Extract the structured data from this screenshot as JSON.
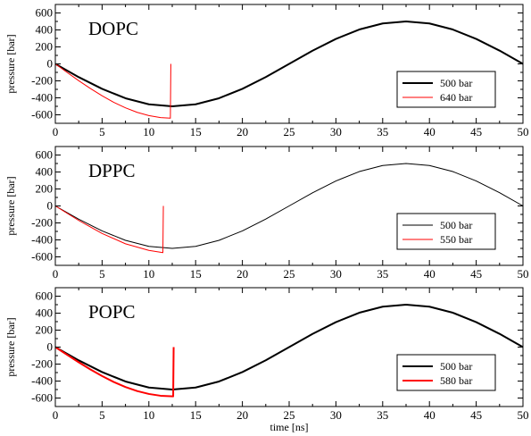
{
  "chart_data": [
    {
      "type": "line",
      "title": "DOPC",
      "xlabel": "",
      "ylabel": "pressure [bar]",
      "xlim": [
        0,
        50
      ],
      "ylim": [
        -700,
        700
      ],
      "xticks": [
        0,
        5,
        10,
        15,
        20,
        25,
        30,
        35,
        40,
        45,
        50
      ],
      "yticks": [
        -600,
        -400,
        -200,
        0,
        200,
        400,
        600
      ],
      "grid": false,
      "legend_position": "bottom-right",
      "series": [
        {
          "name": "500 bar",
          "color": "#000000",
          "line_width": 2,
          "x": [
            0,
            2.5,
            5,
            7.5,
            10,
            12.5,
            15,
            17.5,
            20,
            22.5,
            25,
            27.5,
            30,
            32.5,
            35,
            37.5,
            40,
            42.5,
            45,
            47.5,
            50
          ],
          "y": [
            0,
            -156,
            -294,
            -405,
            -476,
            -500,
            -476,
            -405,
            -294,
            -155,
            0,
            155,
            294,
            405,
            476,
            500,
            476,
            405,
            294,
            156,
            0
          ]
        },
        {
          "name": "640 bar",
          "color": "#ff0000",
          "line_width": 1,
          "x": [
            0,
            1.25,
            2.5,
            3.75,
            5,
            6.25,
            7.5,
            8.75,
            10,
            11.25,
            12.3,
            12.35
          ],
          "y": [
            0,
            -100,
            -198,
            -290,
            -376,
            -453,
            -518,
            -571,
            -609,
            -633,
            -640,
            0
          ]
        }
      ]
    },
    {
      "type": "line",
      "title": "DPPC",
      "xlabel": "",
      "ylabel": "pressure [bar]",
      "xlim": [
        0,
        50
      ],
      "ylim": [
        -700,
        700
      ],
      "xticks": [
        0,
        5,
        10,
        15,
        20,
        25,
        30,
        35,
        40,
        45,
        50
      ],
      "yticks": [
        -600,
        -400,
        -200,
        0,
        200,
        400,
        600
      ],
      "grid": false,
      "legend_position": "bottom-right",
      "series": [
        {
          "name": "500 bar",
          "color": "#000000",
          "line_width": 1,
          "x": [
            0,
            2.5,
            5,
            7.5,
            10,
            12.5,
            15,
            17.5,
            20,
            22.5,
            25,
            27.5,
            30,
            32.5,
            35,
            37.5,
            40,
            42.5,
            45,
            47.5,
            50
          ],
          "y": [
            0,
            -156,
            -294,
            -405,
            -476,
            -500,
            -476,
            -405,
            -294,
            -155,
            0,
            155,
            294,
            405,
            476,
            500,
            476,
            405,
            294,
            156,
            0
          ]
        },
        {
          "name": "550 bar",
          "color": "#ff0000",
          "line_width": 1,
          "x": [
            0,
            2.5,
            5,
            7.5,
            10,
            11.5,
            11.55
          ],
          "y": [
            0,
            -171,
            -324,
            -446,
            -524,
            -550,
            0
          ]
        }
      ]
    },
    {
      "type": "line",
      "title": "POPC",
      "xlabel": "time [ns]",
      "ylabel": "pressure [bar]",
      "xlim": [
        0,
        50
      ],
      "ylim": [
        -700,
        700
      ],
      "xticks": [
        0,
        5,
        10,
        15,
        20,
        25,
        30,
        35,
        40,
        45,
        50
      ],
      "yticks": [
        -600,
        -400,
        -200,
        0,
        200,
        400,
        600
      ],
      "grid": false,
      "legend_position": "bottom-right",
      "series": [
        {
          "name": "500 bar",
          "color": "#000000",
          "line_width": 2,
          "x": [
            0,
            2.5,
            5,
            7.5,
            10,
            12.5,
            15,
            17.5,
            20,
            22.5,
            25,
            27.5,
            30,
            32.5,
            35,
            37.5,
            40,
            42.5,
            45,
            47.5,
            50
          ],
          "y": [
            0,
            -156,
            -294,
            -405,
            -476,
            -500,
            -476,
            -405,
            -294,
            -155,
            0,
            155,
            294,
            405,
            476,
            500,
            476,
            405,
            294,
            156,
            0
          ]
        },
        {
          "name": "580 bar",
          "color": "#ff0000",
          "line_width": 2,
          "x": [
            0,
            1.25,
            2.5,
            3.75,
            5,
            6.25,
            7.5,
            8.75,
            10,
            11.25,
            12.6,
            12.65
          ],
          "y": [
            0,
            -90,
            -179,
            -263,
            -341,
            -411,
            -470,
            -518,
            -552,
            -573,
            -580,
            0
          ]
        }
      ]
    }
  ]
}
